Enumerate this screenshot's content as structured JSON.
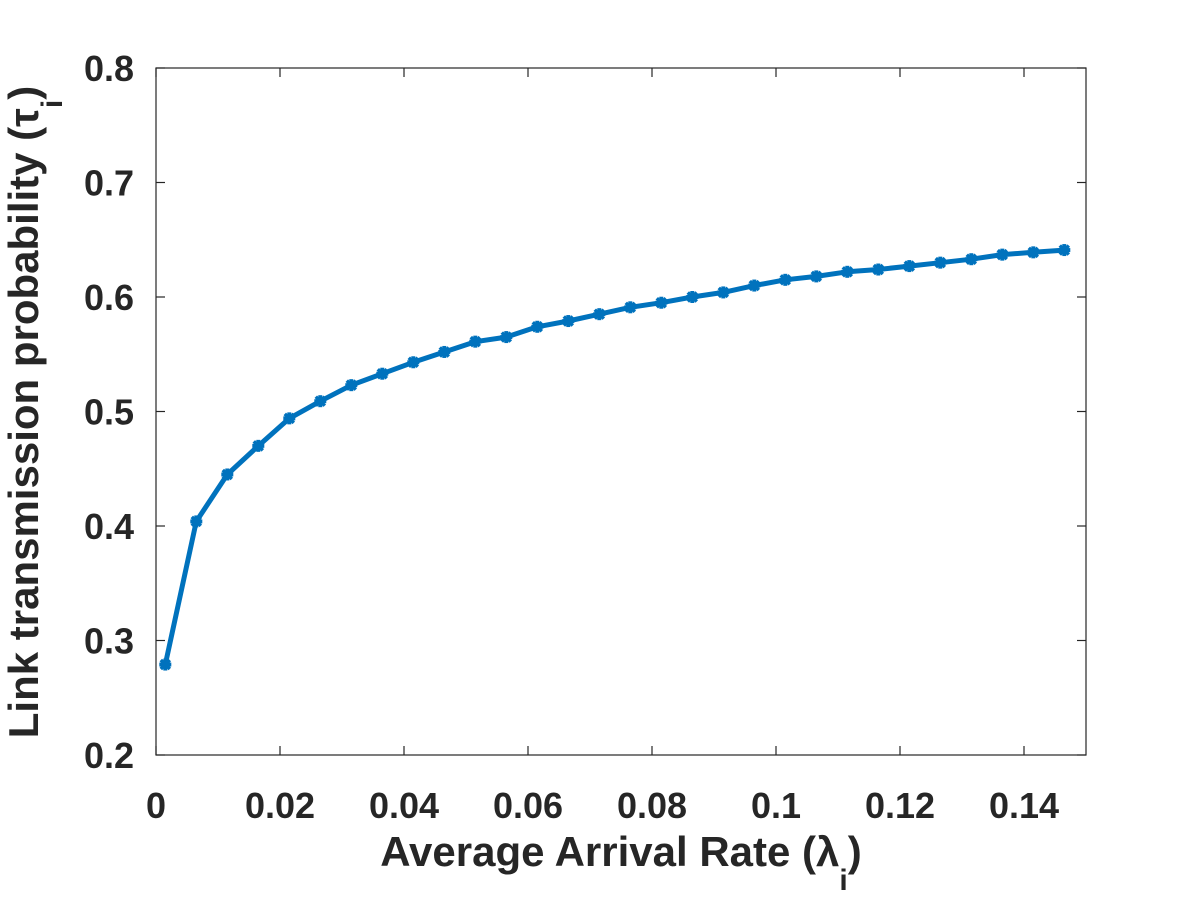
{
  "chart_data": {
    "type": "line",
    "title": "",
    "xlabel": "Average Arrival Rate (λ",
    "xlabel_subscript": "i",
    "xlabel_suffix": ")",
    "ylabel": "Link transmission probability (τ",
    "ylabel_subscript": "i",
    "ylabel_suffix": ")",
    "xlim": [
      0,
      0.15
    ],
    "ylim": [
      0.2,
      0.8
    ],
    "xticks": [
      0,
      0.02,
      0.04,
      0.06,
      0.08,
      0.1,
      0.12,
      0.14
    ],
    "xtick_labels": [
      "0",
      "0.02",
      "0.04",
      "0.06",
      "0.08",
      "0.1",
      "0.12",
      "0.14"
    ],
    "yticks": [
      0.2,
      0.3,
      0.4,
      0.5,
      0.6,
      0.7,
      0.8
    ],
    "ytick_labels": [
      "0.2",
      "0.3",
      "0.4",
      "0.5",
      "0.6",
      "0.7",
      "0.8"
    ],
    "grid": false,
    "series": [
      {
        "color": "#0072BD",
        "marker": "asterisk",
        "x": [
          0.0015,
          0.0065,
          0.0115,
          0.0165,
          0.0215,
          0.0265,
          0.0315,
          0.0365,
          0.0415,
          0.0465,
          0.0515,
          0.0565,
          0.0615,
          0.0665,
          0.0715,
          0.0765,
          0.0815,
          0.0865,
          0.0915,
          0.0965,
          0.1015,
          0.1065,
          0.1115,
          0.1165,
          0.1215,
          0.1265,
          0.1315,
          0.1365,
          0.1415,
          0.1465
        ],
        "y": [
          0.279,
          0.404,
          0.445,
          0.47,
          0.494,
          0.509,
          0.523,
          0.533,
          0.543,
          0.552,
          0.561,
          0.565,
          0.574,
          0.579,
          0.585,
          0.591,
          0.595,
          0.6,
          0.604,
          0.61,
          0.615,
          0.618,
          0.622,
          0.624,
          0.627,
          0.63,
          0.633,
          0.637,
          0.639,
          0.641
        ]
      }
    ]
  }
}
